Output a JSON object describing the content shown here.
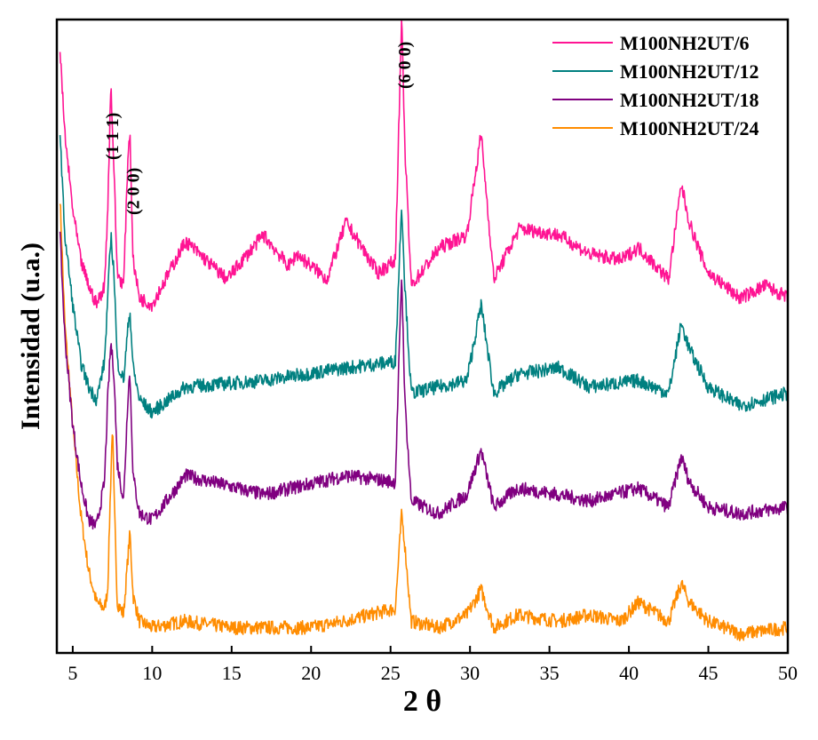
{
  "chart_data": {
    "type": "line",
    "xlabel": "2 θ",
    "ylabel": "Intensidad (u.a.)",
    "xlim": [
      4,
      50
    ],
    "x_ticks": [
      "5",
      "10",
      "15",
      "20",
      "25",
      "30",
      "35",
      "40",
      "45",
      "50"
    ],
    "y_ticks_shown": false,
    "legend_position": "top-right",
    "peak_annotations": [
      {
        "label": "(1 1 1)",
        "x": 7.4
      },
      {
        "label": "(2 0 0)",
        "x": 8.5
      },
      {
        "label": "(6 0 0)",
        "x": 25.7
      }
    ],
    "series": [
      {
        "name": "M100NH2UT/24",
        "color": "#FF8C00",
        "baseline": 0.04,
        "points": [
          [
            4.2,
            0.72
          ],
          [
            4.5,
            0.52
          ],
          [
            5,
            0.36
          ],
          [
            5.5,
            0.22
          ],
          [
            6,
            0.13
          ],
          [
            6.5,
            0.08
          ],
          [
            7,
            0.07
          ],
          [
            7.2,
            0.1
          ],
          [
            7.4,
            0.28
          ],
          [
            7.5,
            0.36
          ],
          [
            7.6,
            0.25
          ],
          [
            7.8,
            0.08
          ],
          [
            8.2,
            0.06
          ],
          [
            8.5,
            0.16
          ],
          [
            8.6,
            0.19
          ],
          [
            8.8,
            0.09
          ],
          [
            9.2,
            0.05
          ],
          [
            10,
            0.04
          ],
          [
            12,
            0.05
          ],
          [
            15,
            0.04
          ],
          [
            20,
            0.04
          ],
          [
            22,
            0.05
          ],
          [
            25.3,
            0.07
          ],
          [
            25.7,
            0.22
          ],
          [
            25.9,
            0.17
          ],
          [
            26.3,
            0.05
          ],
          [
            28,
            0.04
          ],
          [
            29.8,
            0.06
          ],
          [
            30.7,
            0.1
          ],
          [
            31.5,
            0.04
          ],
          [
            33,
            0.06
          ],
          [
            35.6,
            0.05
          ],
          [
            37.5,
            0.06
          ],
          [
            39.5,
            0.05
          ],
          [
            40.6,
            0.08
          ],
          [
            42.5,
            0.05
          ],
          [
            43.3,
            0.11
          ],
          [
            43.8,
            0.08
          ],
          [
            45,
            0.05
          ],
          [
            47,
            0.03
          ],
          [
            50,
            0.04
          ]
        ]
      },
      {
        "name": "M100NH2UT/18",
        "color": "#800080",
        "baseline": 0.22,
        "points": [
          [
            4.2,
            0.66
          ],
          [
            4.5,
            0.5
          ],
          [
            5,
            0.36
          ],
          [
            5.5,
            0.27
          ],
          [
            6,
            0.21
          ],
          [
            6.5,
            0.2
          ],
          [
            7,
            0.27
          ],
          [
            7.2,
            0.4
          ],
          [
            7.4,
            0.49
          ],
          [
            7.6,
            0.44
          ],
          [
            7.8,
            0.3
          ],
          [
            8.2,
            0.24
          ],
          [
            8.5,
            0.42
          ],
          [
            8.6,
            0.44
          ],
          [
            8.8,
            0.28
          ],
          [
            9.2,
            0.22
          ],
          [
            10,
            0.21
          ],
          [
            12.1,
            0.28
          ],
          [
            17,
            0.25
          ],
          [
            22.2,
            0.28
          ],
          [
            25.3,
            0.27
          ],
          [
            25.7,
            0.6
          ],
          [
            25.9,
            0.4
          ],
          [
            26.3,
            0.24
          ],
          [
            28,
            0.22
          ],
          [
            29.8,
            0.25
          ],
          [
            30.7,
            0.32
          ],
          [
            31.5,
            0.23
          ],
          [
            33,
            0.26
          ],
          [
            35.6,
            0.25
          ],
          [
            37.5,
            0.24
          ],
          [
            40.6,
            0.26
          ],
          [
            42.5,
            0.23
          ],
          [
            43.3,
            0.31
          ],
          [
            43.8,
            0.27
          ],
          [
            45,
            0.23
          ],
          [
            47,
            0.22
          ],
          [
            50,
            0.23
          ]
        ]
      },
      {
        "name": "M100NH2UT/12",
        "color": "#008080",
        "baseline": 0.39,
        "points": [
          [
            4.2,
            0.82
          ],
          [
            4.5,
            0.66
          ],
          [
            5,
            0.55
          ],
          [
            5.5,
            0.46
          ],
          [
            6,
            0.42
          ],
          [
            6.5,
            0.4
          ],
          [
            7,
            0.46
          ],
          [
            7.2,
            0.56
          ],
          [
            7.4,
            0.66
          ],
          [
            7.6,
            0.6
          ],
          [
            7.8,
            0.46
          ],
          [
            8.2,
            0.43
          ],
          [
            8.5,
            0.52
          ],
          [
            8.6,
            0.54
          ],
          [
            8.8,
            0.45
          ],
          [
            9.2,
            0.4
          ],
          [
            10,
            0.38
          ],
          [
            12.1,
            0.42
          ],
          [
            17,
            0.43
          ],
          [
            22.2,
            0.45
          ],
          [
            25.3,
            0.46
          ],
          [
            25.7,
            0.71
          ],
          [
            25.9,
            0.58
          ],
          [
            26.3,
            0.41
          ],
          [
            28,
            0.42
          ],
          [
            29.8,
            0.43
          ],
          [
            30.7,
            0.55
          ],
          [
            31.5,
            0.41
          ],
          [
            33,
            0.44
          ],
          [
            35.6,
            0.45
          ],
          [
            37.5,
            0.42
          ],
          [
            40.6,
            0.43
          ],
          [
            42.5,
            0.41
          ],
          [
            43.3,
            0.52
          ],
          [
            43.8,
            0.48
          ],
          [
            45,
            0.42
          ],
          [
            47,
            0.39
          ],
          [
            50,
            0.41
          ]
        ]
      },
      {
        "name": "M100NH2UT/6",
        "color": "#FF1493",
        "baseline": 0.55,
        "points": [
          [
            4.2,
            0.95
          ],
          [
            4.5,
            0.82
          ],
          [
            5,
            0.7
          ],
          [
            5.5,
            0.62
          ],
          [
            6,
            0.58
          ],
          [
            6.5,
            0.55
          ],
          [
            7,
            0.58
          ],
          [
            7.2,
            0.7
          ],
          [
            7.4,
            0.9
          ],
          [
            7.6,
            0.76
          ],
          [
            7.8,
            0.6
          ],
          [
            8.2,
            0.58
          ],
          [
            8.5,
            0.8
          ],
          [
            8.6,
            0.82
          ],
          [
            8.8,
            0.62
          ],
          [
            9.2,
            0.56
          ],
          [
            10,
            0.55
          ],
          [
            12.1,
            0.65
          ],
          [
            14.7,
            0.59
          ],
          [
            17,
            0.66
          ],
          [
            18.6,
            0.61
          ],
          [
            19.1,
            0.63
          ],
          [
            21,
            0.59
          ],
          [
            22.2,
            0.68
          ],
          [
            24.2,
            0.6
          ],
          [
            25.3,
            0.62
          ],
          [
            25.7,
            1.0
          ],
          [
            25.9,
            0.8
          ],
          [
            26.3,
            0.58
          ],
          [
            28.1,
            0.64
          ],
          [
            29.8,
            0.66
          ],
          [
            30.7,
            0.82
          ],
          [
            31.5,
            0.59
          ],
          [
            33.1,
            0.67
          ],
          [
            35.6,
            0.66
          ],
          [
            37.5,
            0.63
          ],
          [
            39.5,
            0.62
          ],
          [
            40.6,
            0.64
          ],
          [
            42.5,
            0.59
          ],
          [
            43.3,
            0.74
          ],
          [
            43.8,
            0.68
          ],
          [
            44.5,
            0.63
          ],
          [
            45,
            0.6
          ],
          [
            47,
            0.56
          ],
          [
            48.6,
            0.58
          ],
          [
            50,
            0.56
          ]
        ]
      }
    ]
  }
}
